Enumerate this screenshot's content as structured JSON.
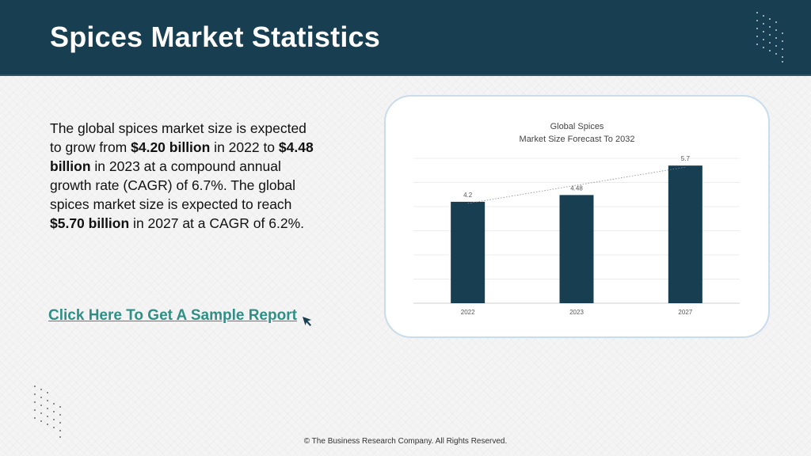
{
  "header": {
    "title": "Spices Market Statistics"
  },
  "body": {
    "segments": [
      {
        "text": "The global spices market size is expected to grow from ",
        "bold": false
      },
      {
        "text": "$4.20 billion",
        "bold": true
      },
      {
        "text": " in 2022 to ",
        "bold": false
      },
      {
        "text": "$4.48 billion",
        "bold": true
      },
      {
        "text": " in 2023 at a compound annual growth rate (CAGR) of 6.7%. The global spices market size is expected to reach ",
        "bold": false
      },
      {
        "text": "$5.70 billion",
        "bold": true
      },
      {
        "text": " in 2027 at a CAGR of 6.2%.",
        "bold": false
      }
    ]
  },
  "cta": {
    "label": "Click Here To Get A Sample Report",
    "icon": "cursor-arrow-icon"
  },
  "footer": {
    "text": "© The Business Research Company. All Rights Reserved."
  },
  "colors": {
    "header_bg": "#173f51",
    "bar": "#173f51",
    "cta": "#2f8f86",
    "card_border": "#c9dceb"
  },
  "chart_data": {
    "type": "bar",
    "title": "Global Spices",
    "subtitle": "Market Size Forecast To 2032",
    "categories": [
      "2022",
      "2023",
      "2027"
    ],
    "values": [
      4.2,
      4.48,
      5.7
    ],
    "data_labels": [
      "4.2",
      "4.48",
      "5.7"
    ],
    "ylim": [
      0,
      6
    ],
    "grid": true,
    "trendline": true,
    "xlabel": "",
    "ylabel": ""
  }
}
